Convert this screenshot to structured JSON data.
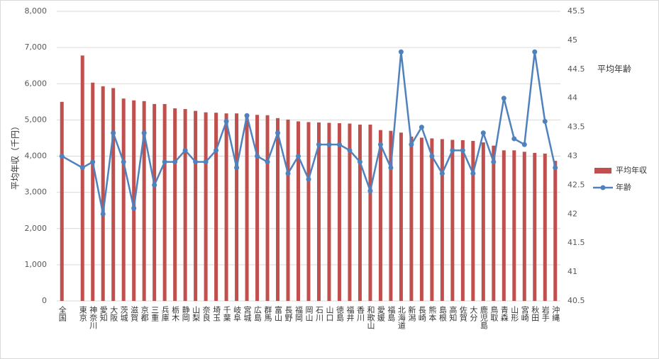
{
  "chart_data": {
    "type": "bar_line",
    "y_label": "平均年収（千円）",
    "y2_label": "平均年齢",
    "categories": [
      "全国",
      "東京",
      "神奈川",
      "愛知",
      "大阪",
      "茨城",
      "滋賀",
      "京都",
      "三重",
      "兵庫",
      "栃木",
      "静岡",
      "山梨",
      "奈良",
      "埼玉",
      "千葉",
      "岐阜",
      "宮城",
      "広島",
      "群馬",
      "富山",
      "長野",
      "福岡",
      "岡山",
      "石川",
      "山口",
      "徳島",
      "福井",
      "香川",
      "和歌山",
      "愛媛",
      "福島",
      "北海道",
      "新潟",
      "長崎",
      "熊本",
      "島根",
      "高知",
      "佐賀",
      "大分",
      "鹿児島",
      "鳥取",
      "青森",
      "山形",
      "宮崎",
      "秋田",
      "岩手",
      "沖縄"
    ],
    "series": [
      {
        "name": "平均年収",
        "type": "bar",
        "color": "#c0504d",
        "values": [
          5500,
          6780,
          6030,
          5930,
          5880,
          5590,
          5540,
          5520,
          5440,
          5440,
          5320,
          5300,
          5250,
          5210,
          5200,
          5180,
          5180,
          5150,
          5140,
          5130,
          5050,
          5010,
          4960,
          4940,
          4930,
          4920,
          4910,
          4900,
          4870,
          4870,
          4720,
          4700,
          4650,
          4540,
          4510,
          4490,
          4470,
          4450,
          4440,
          4420,
          4380,
          4290,
          4160,
          4160,
          4120,
          4090,
          4070,
          3870
        ]
      },
      {
        "name": "年齢",
        "type": "line",
        "axis": "y2",
        "color": "#4f81bd",
        "values": [
          43.0,
          42.8,
          42.9,
          42.0,
          43.4,
          42.9,
          42.1,
          43.4,
          42.5,
          42.9,
          42.9,
          43.1,
          42.9,
          42.9,
          43.1,
          43.6,
          42.8,
          43.7,
          43.0,
          42.9,
          43.4,
          42.7,
          43.0,
          42.6,
          43.2,
          43.2,
          43.2,
          43.1,
          42.9,
          42.4,
          43.2,
          42.8,
          44.8,
          43.2,
          43.5,
          43.0,
          42.7,
          43.1,
          43.1,
          42.7,
          43.4,
          42.9,
          44.0,
          43.3,
          43.2,
          44.8,
          43.6,
          42.8
        ]
      }
    ],
    "ylim": [
      0,
      8000
    ],
    "yticks": [
      0,
      {
        "value": 1000,
        "label": "1,000"
      },
      {
        "value": 2000,
        "label": "2,000"
      },
      {
        "value": 3000,
        "label": "3,000"
      },
      {
        "value": 4000,
        "label": "4,000"
      },
      {
        "value": 5000,
        "label": "5,000"
      },
      {
        "value": 6000,
        "label": "6,000"
      },
      {
        "value": 7000,
        "label": "7,000"
      },
      {
        "value": 8000,
        "label": "8,000"
      }
    ],
    "y2lim": [
      40.5,
      45.5
    ],
    "y2ticks": [
      40.5,
      41,
      41.5,
      42,
      42.5,
      43,
      43.5,
      44,
      44.5,
      45,
      45.5
    ],
    "grid": true,
    "legend": "right"
  }
}
